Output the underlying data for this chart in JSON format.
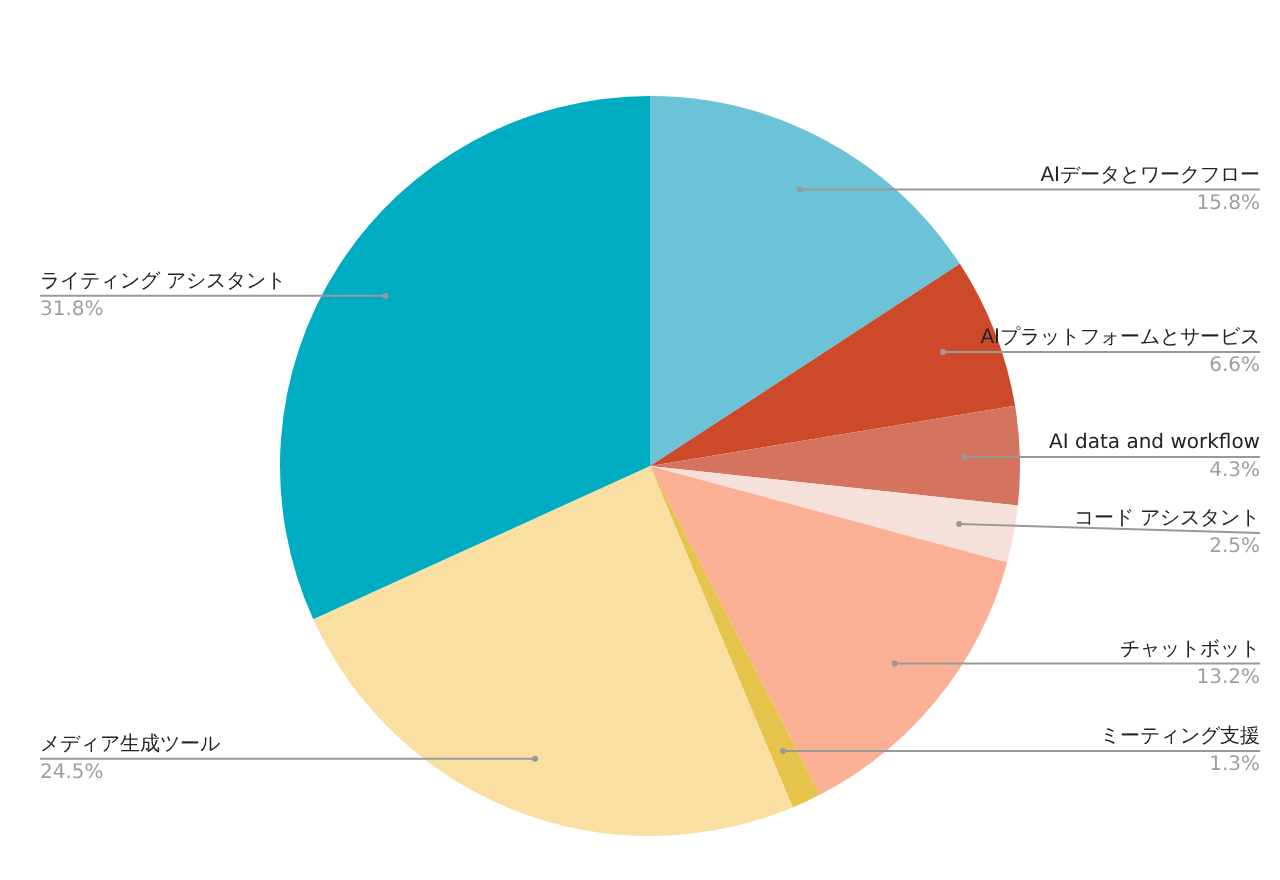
{
  "chart_data": {
    "type": "pie",
    "categories": [
      "AIデータとワークフロー",
      "AIプラットフォームとサービス",
      "AI data and workflow",
      "コード アシスタント",
      "チャットボット",
      "ミーティング支援",
      "メディア生成ツール",
      "ライティング アシスタント"
    ],
    "values": [
      15.8,
      6.6,
      4.3,
      2.5,
      13.2,
      1.3,
      24.5,
      31.8
    ],
    "value_labels": [
      "15.8%",
      "6.6%",
      "4.3%",
      "2.5%",
      "13.2%",
      "1.3%",
      "24.5%",
      "31.8%"
    ],
    "colors": [
      "#6cc2d6",
      "#cc4a2a",
      "#d4735e",
      "#f5e1da",
      "#fbaf94",
      "#e6c34a",
      "#f9e0a2",
      "#00acc1"
    ],
    "legend": false
  }
}
